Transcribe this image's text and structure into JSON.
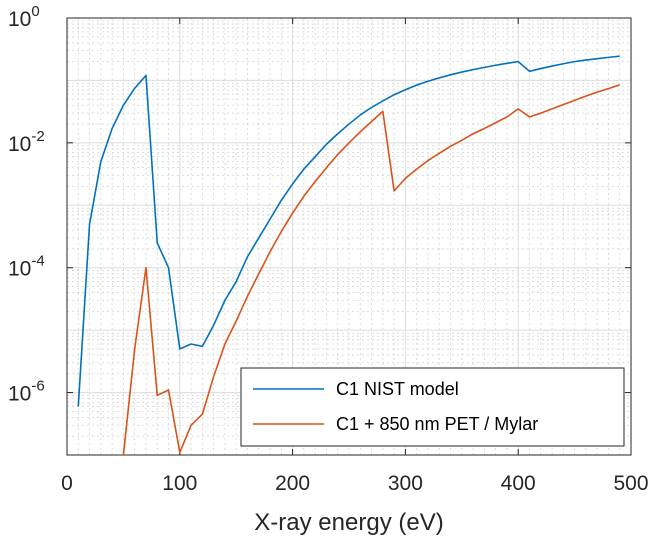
{
  "chart_data": {
    "type": "line",
    "xlabel": "X-ray energy (eV)",
    "ylabel": "",
    "xlim": [
      0,
      500
    ],
    "ylim": [
      1e-07,
      1
    ],
    "yscale": "log",
    "grid": true,
    "minor_grid": true,
    "legend_position": "bottom-right",
    "x_ticks": [
      0,
      100,
      200,
      300,
      400,
      500
    ],
    "x_tick_labels": [
      "0",
      "100",
      "200",
      "300",
      "400",
      "500"
    ],
    "y_ticks": [
      1e-06,
      0.0001,
      0.01,
      1
    ],
    "y_tick_labels": [
      {
        "base": "10",
        "exp": "-6"
      },
      {
        "base": "10",
        "exp": "-4"
      },
      {
        "base": "10",
        "exp": "-2"
      },
      {
        "base": "10",
        "exp": "0"
      }
    ],
    "series": [
      {
        "name": "C1 NIST model",
        "color": "#0072BD",
        "x": [
          10,
          20,
          30,
          40,
          50,
          60,
          70,
          80,
          90,
          100,
          110,
          120,
          130,
          140,
          150,
          160,
          170,
          180,
          190,
          200,
          210,
          220,
          230,
          240,
          250,
          260,
          270,
          280,
          290,
          300,
          310,
          320,
          330,
          340,
          350,
          360,
          370,
          380,
          390,
          400,
          410,
          420,
          430,
          440,
          450,
          460,
          470,
          480,
          490
        ],
        "y": [
          6e-07,
          0.0005,
          0.005,
          0.017,
          0.04,
          0.075,
          0.12,
          0.00025,
          0.0001,
          5e-06,
          6e-06,
          5.5e-06,
          1.2e-05,
          3e-05,
          6e-05,
          0.00015,
          0.0003,
          0.0006,
          0.0012,
          0.0022,
          0.0038,
          0.006,
          0.0095,
          0.014,
          0.02,
          0.028,
          0.037,
          0.047,
          0.059,
          0.071,
          0.084,
          0.097,
          0.11,
          0.123,
          0.136,
          0.149,
          0.162,
          0.175,
          0.188,
          0.2,
          0.14,
          0.155,
          0.17,
          0.185,
          0.2,
          0.212,
          0.223,
          0.234,
          0.245
        ]
      },
      {
        "name": "C1 + 850 nm PET / Mylar",
        "color": "#D95319",
        "x": [
          50,
          60,
          70,
          80,
          90,
          100,
          110,
          120,
          130,
          140,
          150,
          160,
          170,
          180,
          190,
          200,
          210,
          220,
          230,
          240,
          250,
          260,
          270,
          280,
          290,
          300,
          310,
          320,
          330,
          340,
          350,
          360,
          370,
          380,
          390,
          400,
          410,
          420,
          430,
          440,
          450,
          460,
          470,
          480,
          490
        ],
        "y": [
          1e-07,
          5e-06,
          0.0001,
          9e-07,
          1.1e-06,
          1.1e-07,
          3e-07,
          4.5e-07,
          1.8e-06,
          6e-06,
          1.4e-05,
          3.5e-05,
          8e-05,
          0.00018,
          0.00038,
          0.00075,
          0.0014,
          0.0024,
          0.004,
          0.0065,
          0.01,
          0.015,
          0.022,
          0.032,
          0.0017,
          0.0027,
          0.0038,
          0.0052,
          0.0068,
          0.0088,
          0.011,
          0.014,
          0.017,
          0.021,
          0.026,
          0.035,
          0.026,
          0.03,
          0.035,
          0.041,
          0.048,
          0.056,
          0.065,
          0.074,
          0.085
        ]
      }
    ]
  }
}
